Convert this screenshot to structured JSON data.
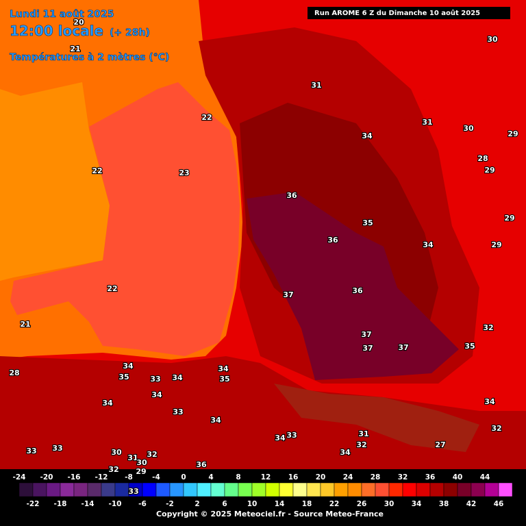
{
  "header": {
    "date": "Lundi 11 août 2025",
    "time": "12:00 locale",
    "lead": "(+ 28h)",
    "variable": "Températures à 2 mètres (°C)"
  },
  "run": "Run AROME 6 Z du Dimanche 10 août 2025",
  "map_labels": [
    20,
    21,
    22,
    22,
    23,
    22,
    21,
    31,
    30,
    31,
    30,
    29,
    34,
    28,
    29,
    36,
    35,
    29,
    36,
    34,
    29,
    37,
    36,
    32,
    37,
    37,
    37,
    35,
    34,
    35,
    33,
    34,
    34,
    35,
    34,
    34,
    33,
    34,
    34,
    33,
    34,
    32,
    31,
    32,
    34,
    27,
    33,
    33,
    30,
    31,
    32,
    30,
    32,
    29,
    36,
    33,
    28
  ],
  "colorbar": {
    "colors": [
      "#2d0f3a",
      "#4a1460",
      "#6a1a84",
      "#8a2a9a",
      "#7a2580",
      "#5a2a6a",
      "#3a3a8a",
      "#1a2aa0",
      "#0000c8",
      "#0000ff",
      "#1e5aff",
      "#2896ff",
      "#32c8ff",
      "#50f0ff",
      "#64ffd2",
      "#64ff8c",
      "#78ff50",
      "#a0ff28",
      "#d2ff00",
      "#ffff32",
      "#ffff8c",
      "#ffe650",
      "#ffc828",
      "#ffa000",
      "#ff8c00",
      "#ff6e28",
      "#ff5032",
      "#ff2800",
      "#ff0000",
      "#dc0000",
      "#b40000",
      "#8c0000",
      "#780028",
      "#8c0050",
      "#b40096",
      "#ff50ff"
    ],
    "top_ticks": [
      -24,
      -20,
      -16,
      -12,
      -8,
      -4,
      0,
      4,
      8,
      12,
      16,
      20,
      24,
      28,
      32,
      36,
      40,
      44
    ],
    "bottom_ticks": [
      -22,
      -18,
      -14,
      -10,
      -6,
      -2,
      2,
      6,
      10,
      14,
      18,
      22,
      26,
      30,
      34,
      38,
      42,
      46
    ]
  },
  "copyright": "Copyright © 2025 Meteociel.fr - Source Meteo-France"
}
